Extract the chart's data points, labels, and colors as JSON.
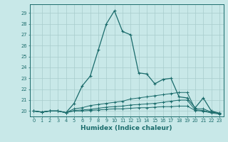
{
  "xlabel": "Humidex (Indice chaleur)",
  "background_color": "#c8e8e8",
  "grid_color": "#a8cccc",
  "line_color": "#1a6b6b",
  "xlim": [
    -0.5,
    23.5
  ],
  "ylim": [
    19.5,
    29.8
  ],
  "yticks": [
    20,
    21,
    22,
    23,
    24,
    25,
    26,
    27,
    28,
    29
  ],
  "xticks": [
    0,
    1,
    2,
    3,
    4,
    5,
    6,
    7,
    8,
    9,
    10,
    11,
    12,
    13,
    14,
    15,
    16,
    17,
    18,
    19,
    20,
    21,
    22,
    23
  ],
  "line_main_x": [
    0,
    1,
    2,
    3,
    4,
    5,
    6,
    7,
    8,
    9,
    10,
    11,
    12,
    13,
    14,
    15,
    16,
    17,
    18,
    19,
    20,
    21,
    22,
    23
  ],
  "line_main_y": [
    20.0,
    19.9,
    20.0,
    20.0,
    19.85,
    20.7,
    22.3,
    23.2,
    25.6,
    28.0,
    29.2,
    27.3,
    27.0,
    23.5,
    23.4,
    22.5,
    22.9,
    23.0,
    21.3,
    21.2,
    20.3,
    21.2,
    20.0,
    19.8
  ],
  "line2_x": [
    0,
    1,
    2,
    3,
    4,
    5,
    6,
    7,
    8,
    9,
    10,
    11,
    12,
    13,
    14,
    15,
    16,
    17,
    18,
    19,
    20,
    21,
    22,
    23
  ],
  "line2_y": [
    20.0,
    19.9,
    20.0,
    20.0,
    19.85,
    20.2,
    20.3,
    20.5,
    20.6,
    20.7,
    20.8,
    20.9,
    21.1,
    21.2,
    21.3,
    21.4,
    21.5,
    21.6,
    21.7,
    21.7,
    20.2,
    20.2,
    19.9,
    19.8
  ],
  "line3_x": [
    0,
    1,
    2,
    3,
    4,
    5,
    6,
    7,
    8,
    9,
    10,
    11,
    12,
    13,
    14,
    15,
    16,
    17,
    18,
    19,
    20,
    21,
    22,
    23
  ],
  "line3_y": [
    20.0,
    19.9,
    20.0,
    20.0,
    19.85,
    20.05,
    20.1,
    20.15,
    20.25,
    20.35,
    20.4,
    20.45,
    20.55,
    20.6,
    20.65,
    20.7,
    20.8,
    20.9,
    21.0,
    21.0,
    20.1,
    20.05,
    19.88,
    19.78
  ],
  "line4_x": [
    0,
    1,
    2,
    3,
    4,
    5,
    6,
    7,
    8,
    9,
    10,
    11,
    12,
    13,
    14,
    15,
    16,
    17,
    18,
    19,
    20,
    21,
    22,
    23
  ],
  "line4_y": [
    20.0,
    19.9,
    20.0,
    20.0,
    19.85,
    20.0,
    20.0,
    20.05,
    20.1,
    20.15,
    20.2,
    20.2,
    20.25,
    20.3,
    20.3,
    20.35,
    20.4,
    20.4,
    20.45,
    20.45,
    20.05,
    19.98,
    19.82,
    19.72
  ]
}
